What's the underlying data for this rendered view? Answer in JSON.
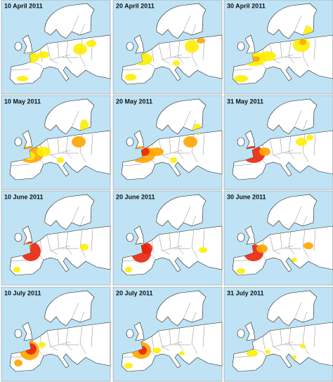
{
  "panels": [
    {
      "label": "10 April 2011"
    },
    {
      "label": "20 April 2011"
    },
    {
      "label": "30 April 2011"
    },
    {
      "label": "10 May 2011"
    },
    {
      "label": "20 May 2011"
    },
    {
      "label": "31 May 2011"
    },
    {
      "label": "10 June 2011"
    },
    {
      "label": "20 June 2011"
    },
    {
      "label": "30 June 2011"
    },
    {
      "label": "10 July 2011"
    },
    {
      "label": "20 July 2011"
    },
    {
      "label": "31 July 2011"
    }
  ]
}
